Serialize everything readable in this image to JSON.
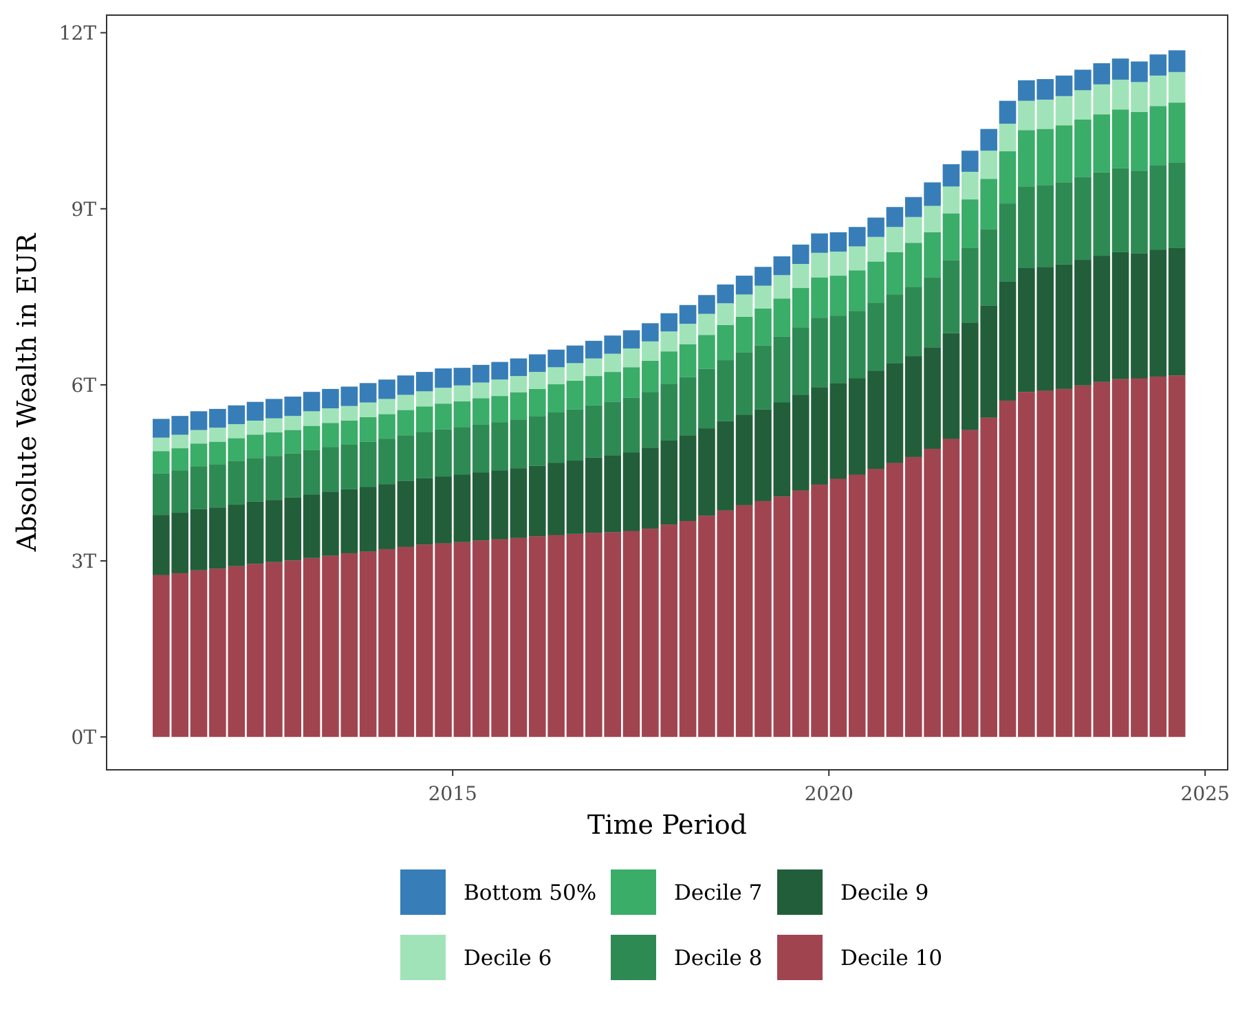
{
  "chart_data": {
    "type": "bar",
    "stacked": true,
    "xlabel": "Time Period",
    "ylabel": "Absolute Wealth in EUR",
    "x_ticks": [
      {
        "value": 2015,
        "label": "2015"
      },
      {
        "value": 2020,
        "label": "2020"
      },
      {
        "value": 2025,
        "label": "2025"
      }
    ],
    "y_ticks": [
      {
        "value": 0,
        "label": "0T"
      },
      {
        "value": 3,
        "label": "3T"
      },
      {
        "value": 6,
        "label": "6T"
      },
      {
        "value": 9,
        "label": "9T"
      },
      {
        "value": 12,
        "label": "12T"
      }
    ],
    "xlim": [
      2010.4,
      2025.3
    ],
    "ylim": [
      -0.56,
      12.3
    ],
    "y_unit": "trillion EUR",
    "grid": false,
    "legend_position": "bottom",
    "stack_order_bottom_to_top": [
      "Decile 10",
      "Decile 9",
      "Decile 8",
      "Decile 7",
      "Decile 6",
      "Bottom 50%"
    ],
    "legend_order": [
      "Bottom 50%",
      "Decile 7",
      "Decile 9",
      "Decile 6",
      "Decile 8",
      "Decile 10"
    ],
    "colors": {
      "Bottom 50%": "#377EB8",
      "Decile 6": "#A1E3B8",
      "Decile 7": "#3AAD68",
      "Decile 8": "#2E8A53",
      "Decile 9": "#225E3A",
      "Decile 10": "#A04550"
    },
    "x": [
      2011.125,
      2011.375,
      2011.625,
      2011.875,
      2012.125,
      2012.375,
      2012.625,
      2012.875,
      2013.125,
      2013.375,
      2013.625,
      2013.875,
      2014.125,
      2014.375,
      2014.625,
      2014.875,
      2015.125,
      2015.375,
      2015.625,
      2015.875,
      2016.125,
      2016.375,
      2016.625,
      2016.875,
      2017.125,
      2017.375,
      2017.625,
      2017.875,
      2018.125,
      2018.375,
      2018.625,
      2018.875,
      2019.125,
      2019.375,
      2019.625,
      2019.875,
      2020.125,
      2020.375,
      2020.625,
      2020.875,
      2021.125,
      2021.375,
      2021.625,
      2021.875,
      2022.125,
      2022.375,
      2022.625,
      2022.875,
      2023.125,
      2023.375,
      2023.625,
      2023.875,
      2024.125,
      2024.375,
      2024.625
    ],
    "series": [
      {
        "name": "Decile 10",
        "values": [
          2.76,
          2.79,
          2.84,
          2.87,
          2.91,
          2.95,
          2.98,
          3.01,
          3.05,
          3.09,
          3.13,
          3.16,
          3.2,
          3.24,
          3.28,
          3.3,
          3.32,
          3.35,
          3.37,
          3.39,
          3.42,
          3.44,
          3.46,
          3.48,
          3.49,
          3.51,
          3.55,
          3.62,
          3.68,
          3.77,
          3.86,
          3.95,
          4.02,
          4.1,
          4.2,
          4.3,
          4.4,
          4.47,
          4.57,
          4.67,
          4.77,
          4.91,
          5.08,
          5.23,
          5.44,
          5.73,
          5.88,
          5.9,
          5.93,
          5.99,
          6.05,
          6.1,
          6.11,
          6.14,
          6.16
        ]
      },
      {
        "name": "Decile 9",
        "values": [
          1.02,
          1.03,
          1.04,
          1.04,
          1.05,
          1.06,
          1.06,
          1.07,
          1.08,
          1.09,
          1.09,
          1.1,
          1.11,
          1.12,
          1.13,
          1.14,
          1.15,
          1.16,
          1.17,
          1.19,
          1.2,
          1.23,
          1.25,
          1.28,
          1.31,
          1.34,
          1.38,
          1.43,
          1.46,
          1.49,
          1.52,
          1.54,
          1.56,
          1.6,
          1.63,
          1.66,
          1.63,
          1.64,
          1.67,
          1.7,
          1.72,
          1.73,
          1.8,
          1.83,
          1.91,
          2.03,
          2.11,
          2.11,
          2.12,
          2.14,
          2.15,
          2.16,
          2.13,
          2.16,
          2.17
        ]
      },
      {
        "name": "Decile 8",
        "values": [
          0.71,
          0.72,
          0.73,
          0.73,
          0.74,
          0.74,
          0.75,
          0.75,
          0.76,
          0.76,
          0.76,
          0.77,
          0.77,
          0.78,
          0.79,
          0.8,
          0.81,
          0.81,
          0.82,
          0.83,
          0.84,
          0.86,
          0.87,
          0.89,
          0.91,
          0.93,
          0.95,
          0.97,
          0.99,
          1.01,
          1.04,
          1.06,
          1.09,
          1.12,
          1.15,
          1.18,
          1.15,
          1.15,
          1.16,
          1.17,
          1.18,
          1.19,
          1.24,
          1.27,
          1.3,
          1.33,
          1.39,
          1.39,
          1.4,
          1.41,
          1.42,
          1.43,
          1.41,
          1.44,
          1.46
        ]
      },
      {
        "name": "Decile 7",
        "values": [
          0.38,
          0.38,
          0.39,
          0.39,
          0.39,
          0.4,
          0.4,
          0.4,
          0.41,
          0.41,
          0.41,
          0.42,
          0.42,
          0.43,
          0.43,
          0.44,
          0.44,
          0.45,
          0.45,
          0.46,
          0.47,
          0.48,
          0.49,
          0.5,
          0.51,
          0.52,
          0.53,
          0.55,
          0.56,
          0.58,
          0.6,
          0.61,
          0.63,
          0.65,
          0.67,
          0.69,
          0.68,
          0.69,
          0.7,
          0.72,
          0.75,
          0.77,
          0.8,
          0.83,
          0.86,
          0.89,
          0.96,
          0.96,
          0.97,
          0.98,
          0.99,
          1.0,
          1.0,
          1.01,
          1.02
        ]
      },
      {
        "name": "Decile 6",
        "values": [
          0.23,
          0.23,
          0.23,
          0.24,
          0.24,
          0.24,
          0.24,
          0.24,
          0.25,
          0.25,
          0.25,
          0.25,
          0.26,
          0.26,
          0.26,
          0.27,
          0.27,
          0.27,
          0.28,
          0.28,
          0.29,
          0.29,
          0.3,
          0.3,
          0.31,
          0.32,
          0.33,
          0.34,
          0.35,
          0.36,
          0.37,
          0.38,
          0.39,
          0.4,
          0.41,
          0.42,
          0.41,
          0.41,
          0.42,
          0.43,
          0.44,
          0.45,
          0.46,
          0.47,
          0.48,
          0.47,
          0.5,
          0.5,
          0.5,
          0.5,
          0.51,
          0.51,
          0.51,
          0.52,
          0.52
        ]
      },
      {
        "name": "Bottom 50%",
        "values": [
          0.32,
          0.32,
          0.32,
          0.32,
          0.32,
          0.32,
          0.33,
          0.33,
          0.33,
          0.33,
          0.33,
          0.33,
          0.33,
          0.33,
          0.33,
          0.33,
          0.3,
          0.3,
          0.3,
          0.3,
          0.3,
          0.3,
          0.3,
          0.3,
          0.31,
          0.31,
          0.31,
          0.31,
          0.32,
          0.32,
          0.32,
          0.32,
          0.32,
          0.32,
          0.33,
          0.33,
          0.33,
          0.33,
          0.33,
          0.34,
          0.34,
          0.4,
          0.38,
          0.36,
          0.37,
          0.39,
          0.35,
          0.35,
          0.35,
          0.35,
          0.36,
          0.36,
          0.35,
          0.36,
          0.37
        ]
      }
    ]
  }
}
